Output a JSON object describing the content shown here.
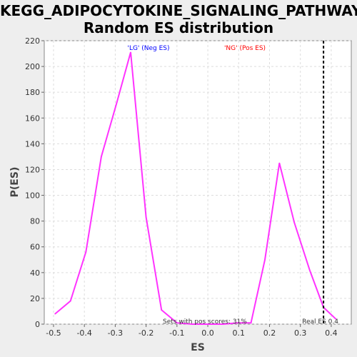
{
  "title_line1": "KEGG_ADIPOCYTOKINE_SIGNALING_PATHWAY:",
  "title_line2": "Random ES distribution",
  "chart_data": {
    "type": "line",
    "xlabel": "ES",
    "ylabel": "P(ES)",
    "xlim": [
      -0.53,
      0.465
    ],
    "ylim": [
      0,
      220
    ],
    "xticks": [
      "-0.5",
      "-0.4",
      "-0.3",
      "-0.2",
      "-0.1",
      "0.0",
      "0.1",
      "0.2",
      "0.3",
      "0.4"
    ],
    "yticks": [
      "0",
      "20",
      "40",
      "60",
      "80",
      "100",
      "120",
      "140",
      "160",
      "180",
      "200",
      "220"
    ],
    "grid": true,
    "series": [
      {
        "color": "#ff33ff",
        "points": [
          [
            -0.495,
            8
          ],
          [
            -0.445,
            18
          ],
          [
            -0.395,
            56
          ],
          [
            -0.345,
            130
          ],
          [
            -0.295,
            172
          ],
          [
            -0.25,
            211
          ],
          [
            -0.2,
            83
          ],
          [
            -0.15,
            11
          ],
          [
            -0.1,
            1
          ],
          [
            -0.05,
            0
          ],
          [
            0.0,
            0
          ],
          [
            0.05,
            0
          ],
          [
            0.095,
            1
          ],
          [
            0.14,
            1
          ],
          [
            0.185,
            50
          ],
          [
            0.232,
            125
          ],
          [
            0.28,
            79
          ],
          [
            0.33,
            42
          ],
          [
            0.375,
            13
          ],
          [
            0.415,
            4
          ]
        ]
      }
    ],
    "real_es": 0.375,
    "annotations": {
      "neg_label": "'LG' (Neg ES)",
      "neg_color": "#0000ff",
      "pos_label": "'NG' (Pos ES)",
      "pos_color": "#ff0000",
      "pos_scores": "Sets with pos scores: 31%",
      "real_es_label": "Real ES 0.4"
    }
  }
}
